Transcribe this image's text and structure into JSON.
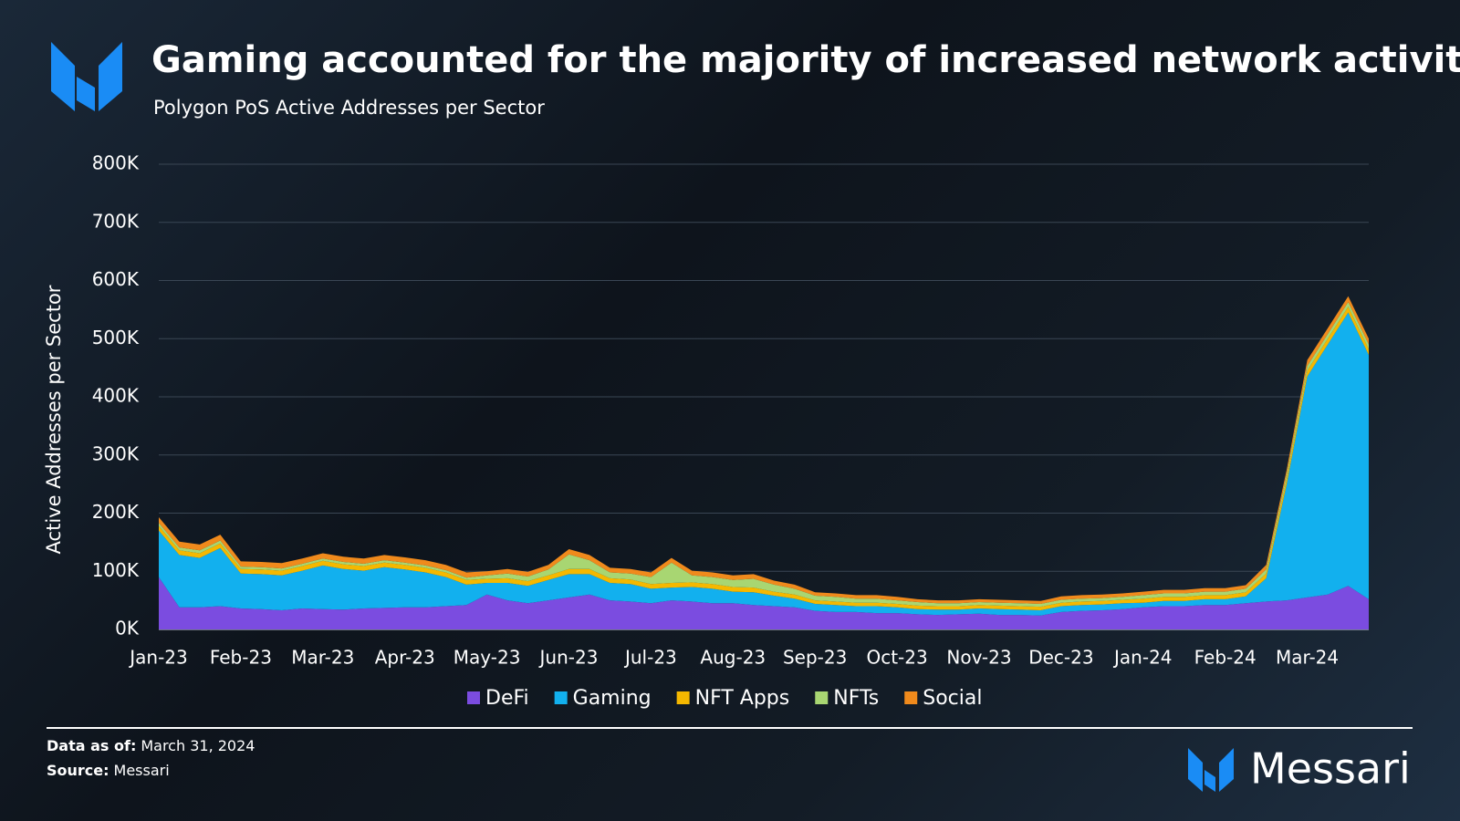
{
  "chart_data": {
    "type": "stacked-area",
    "title": "Gaming accounted for the majority of increased network activity",
    "subtitle": "Polygon PoS Active Addresses per Sector",
    "y_label": "Active Addresses per Sector",
    "categories": [
      "Jan-23",
      null,
      null,
      null,
      "Feb-23",
      null,
      null,
      null,
      "Mar-23",
      null,
      null,
      null,
      "Apr-23",
      null,
      null,
      null,
      "May-23",
      null,
      null,
      null,
      "Jun-23",
      null,
      null,
      null,
      "Jul-23",
      null,
      null,
      null,
      "Aug-23",
      null,
      null,
      null,
      "Sep-23",
      null,
      null,
      null,
      "Oct-23",
      null,
      null,
      null,
      "Nov-23",
      null,
      null,
      null,
      "Dec-23",
      null,
      null,
      null,
      "Jan-24",
      null,
      null,
      null,
      "Feb-24",
      null,
      null,
      null,
      "Mar-24",
      null,
      null,
      null
    ],
    "series": [
      {
        "name": "DeFi",
        "color": "#7b4ce0",
        "values": [
          90000,
          38000,
          38000,
          40000,
          36000,
          35000,
          33000,
          36000,
          35000,
          34000,
          36000,
          37000,
          38000,
          38000,
          40000,
          42000,
          60000,
          50000,
          45000,
          50000,
          55000,
          60000,
          50000,
          48000,
          45000,
          50000,
          48000,
          45000,
          45000,
          42000,
          40000,
          38000,
          32000,
          30000,
          30000,
          28000,
          28000,
          26000,
          25000,
          26000,
          27000,
          25000,
          25000,
          24000,
          30000,
          32000,
          33000,
          35000,
          38000,
          40000,
          40000,
          42000,
          42000,
          45000,
          48000,
          50000,
          55000,
          60000,
          75000,
          52000
        ]
      },
      {
        "name": "Gaming",
        "color": "#12b0ee",
        "values": [
          80000,
          90000,
          85000,
          100000,
          60000,
          60000,
          60000,
          65000,
          75000,
          70000,
          65000,
          70000,
          65000,
          60000,
          50000,
          35000,
          20000,
          30000,
          30000,
          35000,
          40000,
          35000,
          30000,
          30000,
          25000,
          22000,
          25000,
          25000,
          20000,
          22000,
          18000,
          15000,
          12000,
          12000,
          10000,
          12000,
          10000,
          9000,
          9000,
          8000,
          9000,
          10000,
          9000,
          9000,
          10000,
          10000,
          10000,
          10000,
          8000,
          9000,
          9000,
          10000,
          10000,
          12000,
          40000,
          200000,
          380000,
          430000,
          470000,
          420000
        ]
      },
      {
        "name": "NFT Apps",
        "color": "#f5b800",
        "values": [
          8000,
          8000,
          8000,
          8000,
          8000,
          8000,
          8000,
          8000,
          8000,
          8000,
          8000,
          8000,
          8000,
          8000,
          8000,
          8000,
          7000,
          8000,
          8000,
          8000,
          9000,
          9000,
          8000,
          8000,
          8000,
          8000,
          8000,
          8000,
          8000,
          8000,
          7000,
          7000,
          6000,
          6000,
          6000,
          6000,
          6000,
          6000,
          6000,
          6000,
          6000,
          6000,
          6000,
          6000,
          6000,
          6000,
          6000,
          6000,
          7000,
          7000,
          7000,
          7000,
          7000,
          7000,
          8000,
          9000,
          10000,
          10000,
          10000,
          10000
        ]
      },
      {
        "name": "NFTs",
        "color": "#a8d672",
        "values": [
          5000,
          5000,
          5000,
          5000,
          4000,
          4000,
          4000,
          4000,
          4000,
          4000,
          4000,
          4000,
          4000,
          4000,
          4000,
          4000,
          6000,
          8000,
          8000,
          10000,
          25000,
          15000,
          10000,
          10000,
          12000,
          35000,
          12000,
          12000,
          12000,
          15000,
          12000,
          10000,
          8000,
          8000,
          7000,
          7000,
          6000,
          6000,
          5000,
          5000,
          5000,
          5000,
          5000,
          5000,
          5000,
          5000,
          5000,
          5000,
          6000,
          6000,
          6000,
          6000,
          6000,
          6000,
          7000,
          8000,
          8000,
          8000,
          8000,
          8000
        ]
      },
      {
        "name": "Social",
        "color": "#f08a1c",
        "values": [
          10000,
          10000,
          10000,
          10000,
          9000,
          9000,
          9000,
          9000,
          9000,
          9000,
          9000,
          9000,
          9000,
          9000,
          9000,
          9000,
          7000,
          8000,
          8000,
          8000,
          9000,
          9000,
          8000,
          8000,
          8000,
          8000,
          8000,
          8000,
          8000,
          8000,
          7000,
          7000,
          6000,
          6000,
          6000,
          6000,
          6000,
          5000,
          5000,
          5000,
          5000,
          5000,
          5000,
          5000,
          6000,
          6000,
          6000,
          6000,
          6000,
          6000,
          6000,
          6000,
          6000,
          6000,
          8000,
          8000,
          10000,
          10000,
          10000,
          10000
        ]
      }
    ],
    "ylim": [
      0,
      800000
    ],
    "yticks": [
      {
        "value": 0,
        "label": "0K"
      },
      {
        "value": 100000,
        "label": "100K"
      },
      {
        "value": 200000,
        "label": "200K"
      },
      {
        "value": 300000,
        "label": "300K"
      },
      {
        "value": 400000,
        "label": "400K"
      },
      {
        "value": 500000,
        "label": "500K"
      },
      {
        "value": 600000,
        "label": "600K"
      },
      {
        "value": 700000,
        "label": "700K"
      },
      {
        "value": 800000,
        "label": "800K"
      }
    ],
    "grid": true
  },
  "footer": {
    "date_label": "Data as of:",
    "date": "March 31, 2024",
    "source_label": "Source:",
    "source": "Messari",
    "brand": "Messari"
  }
}
